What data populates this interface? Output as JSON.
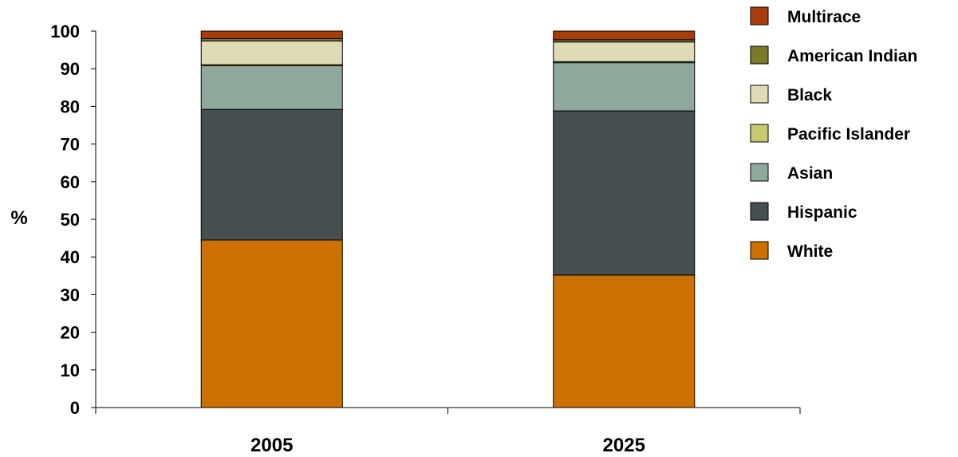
{
  "chart_data": {
    "type": "bar",
    "stacked": true,
    "categories": [
      "2005",
      "2025"
    ],
    "ylabel": "%",
    "xlabel": "",
    "ylim": [
      0,
      100
    ],
    "yticks": [
      0,
      10,
      20,
      30,
      40,
      50,
      60,
      70,
      80,
      90,
      100
    ],
    "grid": false,
    "legend_position": "right",
    "series": [
      {
        "name": "White",
        "color": "#CC7000",
        "values": [
          44.5,
          35.2
        ]
      },
      {
        "name": "Hispanic",
        "color": "#465052",
        "values": [
          34.7,
          43.6
        ]
      },
      {
        "name": "Asian",
        "color": "#8FA89C",
        "values": [
          11.6,
          12.8
        ]
      },
      {
        "name": "Pacific Islander",
        "color": "#C8C870",
        "values": [
          0.3,
          0.3
        ]
      },
      {
        "name": "Black",
        "color": "#DEDBB5",
        "values": [
          6.3,
          5.2
        ]
      },
      {
        "name": "American Indian",
        "color": "#7A7A2A",
        "values": [
          0.6,
          0.6
        ]
      },
      {
        "name": "Multirace",
        "color": "#A83C0A",
        "values": [
          2.0,
          2.3
        ]
      }
    ]
  }
}
